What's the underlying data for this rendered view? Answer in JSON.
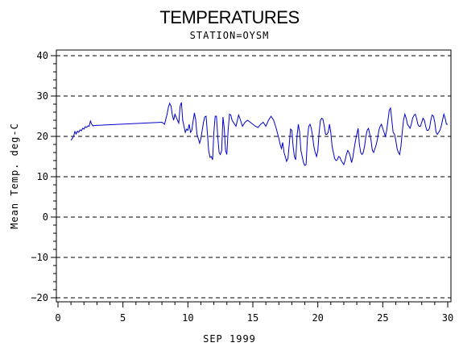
{
  "chart_data": {
    "type": "line",
    "title": "TEMPERATURES",
    "subtitle": "STATION=OYSM",
    "xlabel": "SEP 1999",
    "ylabel": "Mean Temp. deg-C",
    "xlim": [
      0,
      30
    ],
    "ylim": [
      -20,
      40
    ],
    "x_ticks": [
      0,
      5,
      10,
      15,
      20,
      25,
      30
    ],
    "y_ticks": [
      -20,
      -10,
      0,
      10,
      20,
      30,
      40
    ],
    "gridlines": "dashed horizontal at major y ticks",
    "line_color": "#0000cc",
    "series": [
      {
        "x": [
          1.0,
          1.1,
          1.2,
          1.3,
          1.4,
          1.5,
          1.6,
          1.7,
          1.8,
          1.9,
          2.0,
          2.1,
          2.2,
          2.3,
          2.4,
          2.5,
          2.6,
          2.7,
          2.8,
          8.0,
          8.2,
          8.4,
          8.5,
          8.6,
          8.7,
          8.8,
          8.9,
          9.0,
          9.2,
          9.3,
          9.4,
          9.5,
          9.6,
          9.7,
          9.8,
          9.9,
          10.0,
          10.1,
          10.2,
          10.3,
          10.4,
          10.5,
          10.6,
          10.7,
          10.8,
          10.9,
          11.0,
          11.1,
          11.2,
          11.3,
          11.4,
          11.5,
          11.6,
          11.7,
          11.8,
          11.9,
          12.0,
          12.1,
          12.2,
          12.3,
          12.4,
          12.5,
          12.6,
          12.7,
          12.8,
          12.9,
          13.0,
          13.1,
          13.2,
          13.3,
          13.4,
          13.5,
          13.6,
          13.7,
          13.8,
          13.9,
          14.0,
          14.2,
          14.4,
          14.6,
          14.8,
          15.0,
          15.2,
          15.4,
          15.6,
          15.8,
          16.0,
          16.2,
          16.4,
          16.6,
          16.8,
          17.0,
          17.1,
          17.2,
          17.3,
          17.4,
          17.5,
          17.6,
          17.7,
          17.8,
          17.9,
          18.0,
          18.1,
          18.2,
          18.3,
          18.4,
          18.5,
          18.6,
          18.7,
          18.8,
          18.9,
          19.0,
          19.1,
          19.2,
          19.3,
          19.4,
          19.5,
          19.6,
          19.7,
          19.8,
          19.9,
          20.0,
          20.1,
          20.2,
          20.3,
          20.4,
          20.5,
          20.6,
          20.7,
          20.8,
          20.9,
          21.0,
          21.1,
          21.2,
          21.3,
          21.4,
          21.5,
          21.6,
          21.7,
          21.8,
          21.9,
          22.0,
          22.1,
          22.2,
          22.3,
          22.4,
          22.5,
          22.6,
          22.7,
          22.8,
          22.9,
          23.0,
          23.1,
          23.2,
          23.3,
          23.4,
          23.5,
          23.6,
          23.7,
          23.8,
          23.9,
          24.0,
          24.1,
          24.2,
          24.3,
          24.4,
          24.5,
          24.6,
          24.7,
          24.8,
          24.9,
          25.0,
          25.1,
          25.2,
          25.3,
          25.4,
          25.5,
          25.6,
          25.7,
          25.8,
          25.9,
          26.0,
          26.1,
          26.2,
          26.3,
          26.4,
          26.5,
          26.6,
          26.7,
          26.8,
          26.9,
          27.0,
          27.1,
          27.2,
          27.3,
          27.4,
          27.5,
          27.6,
          27.7,
          27.8,
          27.9,
          28.0,
          28.1,
          28.2,
          28.3,
          28.4,
          28.5,
          28.6,
          28.7,
          28.8,
          28.9,
          29.0,
          29.1,
          29.2,
          29.3,
          29.4,
          29.5,
          29.6,
          29.7,
          29.8,
          29.9,
          30.0
        ],
        "y": [
          19.0,
          19.5,
          20.0,
          21.2,
          20.6,
          21.3,
          21.0,
          21.6,
          21.4,
          22.0,
          21.8,
          22.4,
          22.2,
          22.6,
          22.5,
          23.8,
          23.0,
          22.6,
          22.7,
          23.5,
          23.0,
          25.5,
          27.2,
          28.2,
          27.5,
          25.3,
          24.0,
          25.5,
          24.0,
          23.3,
          27.5,
          28.4,
          24.0,
          22.5,
          21.0,
          21.8,
          21.5,
          23.0,
          21.0,
          21.5,
          23.8,
          25.8,
          24.2,
          20.5,
          19.5,
          18.3,
          19.5,
          21.5,
          23.5,
          24.8,
          25.0,
          21.0,
          16.5,
          14.8,
          15.0,
          14.2,
          21.0,
          25.0,
          25.0,
          20.0,
          16.0,
          15.5,
          16.5,
          24.8,
          22.0,
          16.5,
          15.5,
          21.5,
          25.5,
          25.3,
          24.0,
          23.5,
          23.0,
          22.5,
          23.8,
          25.3,
          24.5,
          22.5,
          23.5,
          24.0,
          23.5,
          23.0,
          22.5,
          22.2,
          23.0,
          23.5,
          22.5,
          24.0,
          25.0,
          24.0,
          22.0,
          19.5,
          18.0,
          17.0,
          18.5,
          16.0,
          15.0,
          13.8,
          14.5,
          18.0,
          21.8,
          21.5,
          17.5,
          15.0,
          14.2,
          20.2,
          23.0,
          21.0,
          16.5,
          15.0,
          13.5,
          12.8,
          13.0,
          19.5,
          22.5,
          23.0,
          22.0,
          20.0,
          17.5,
          16.0,
          15.0,
          16.5,
          21.0,
          24.0,
          24.5,
          24.2,
          22.5,
          20.5,
          20.5,
          21.0,
          23.0,
          21.0,
          17.5,
          16.0,
          14.5,
          14.0,
          14.2,
          15.0,
          14.8,
          14.0,
          13.5,
          13.0,
          14.0,
          15.5,
          16.5,
          16.0,
          15.0,
          13.5,
          14.8,
          17.0,
          19.0,
          20.5,
          22.0,
          18.0,
          16.0,
          15.5,
          16.0,
          17.5,
          20.0,
          21.5,
          22.0,
          20.5,
          19.0,
          16.5,
          16.0,
          17.0,
          18.0,
          19.5,
          21.5,
          22.5,
          23.0,
          22.0,
          21.0,
          20.0,
          21.5,
          24.0,
          26.5,
          27.0,
          24.0,
          21.0,
          20.5,
          19.0,
          17.0,
          16.0,
          15.5,
          17.5,
          21.0,
          24.0,
          25.5,
          24.5,
          23.0,
          22.5,
          22.0,
          23.0,
          24.5,
          25.2,
          25.5,
          24.5,
          23.0,
          22.5,
          22.5,
          23.5,
          24.5,
          24.0,
          22.5,
          21.5,
          21.5,
          22.0,
          24.0,
          25.3,
          25.0,
          23.5,
          21.0,
          20.5,
          21.0,
          21.5,
          22.5,
          24.0,
          25.5,
          24.5,
          23.0,
          23.0
        ]
      }
    ]
  }
}
